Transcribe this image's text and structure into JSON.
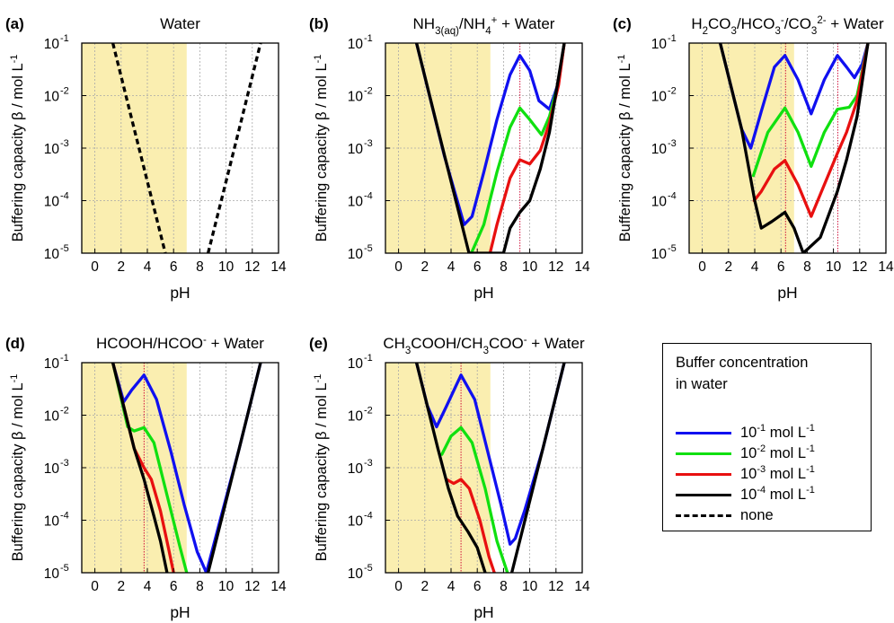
{
  "chart_data": [
    {
      "panel": "(a)",
      "title": "Water",
      "type": "line",
      "xlabel": "pH",
      "ylabel": "Buffering capacity β / mol L-1",
      "xlim": [
        0,
        14
      ],
      "ylim_log10": [
        -5,
        -1
      ],
      "yscale": "log",
      "grid": true,
      "shaded_region": [
        0,
        7
      ],
      "shade_color": "#faeeb0",
      "series": [
        {
          "name": "none",
          "style": "dashed",
          "color": "#000000",
          "points": [
            [
              1.37,
              0.1
            ],
            [
              3.0,
              0.0023
            ],
            [
              5.37,
              1e-05
            ]
          ]
        },
        {
          "name": "none",
          "style": "dashed",
          "color": "#000000",
          "points": [
            [
              8.63,
              1e-05
            ],
            [
              11.0,
              0.0023
            ],
            [
              12.63,
              0.1
            ]
          ]
        }
      ],
      "vlines": []
    },
    {
      "panel": "(b)",
      "title": "NH3(aq)/NH4+ + Water",
      "type": "line",
      "xlabel": "pH",
      "ylabel": "Buffering capacity β / mol L-1",
      "xlim": [
        0,
        14
      ],
      "ylim_log10": [
        -5,
        -1
      ],
      "yscale": "log",
      "grid": true,
      "shaded_region": [
        0,
        7
      ],
      "shade_color": "#faeeb0",
      "pKa": 9.25,
      "series": [
        {
          "name": "10-1 mol L-1",
          "color": "#1010f0",
          "points": [
            [
              1.37,
              0.1
            ],
            [
              3.5,
              0.0007
            ],
            [
              5.0,
              3.5e-05
            ],
            [
              5.6,
              5e-05
            ],
            [
              6.5,
              0.00035
            ],
            [
              7.5,
              0.0035
            ],
            [
              8.5,
              0.025
            ],
            [
              9.25,
              0.058
            ],
            [
              10.0,
              0.03
            ],
            [
              10.7,
              0.008
            ],
            [
              11.5,
              0.0055
            ],
            [
              12.2,
              0.018
            ],
            [
              12.63,
              0.1
            ]
          ]
        },
        {
          "name": "10-2 mol L-1",
          "color": "#10e010",
          "points": [
            [
              5.55,
              1e-05
            ],
            [
              6.5,
              3.5e-05
            ],
            [
              7.5,
              0.00035
            ],
            [
              8.5,
              0.0025
            ],
            [
              9.25,
              0.0058
            ],
            [
              10.0,
              0.0035
            ],
            [
              10.9,
              0.0018
            ],
            [
              11.5,
              0.004
            ],
            [
              12.2,
              0.018
            ],
            [
              12.63,
              0.1
            ]
          ]
        },
        {
          "name": "10-3 mol L-1",
          "color": "#e81010",
          "points": [
            [
              6.97,
              1e-05
            ],
            [
              7.5,
              3.5e-05
            ],
            [
              8.5,
              0.00027
            ],
            [
              9.25,
              0.0006
            ],
            [
              10.0,
              0.0005
            ],
            [
              10.8,
              0.0009
            ],
            [
              11.5,
              0.003
            ],
            [
              12.2,
              0.016
            ],
            [
              12.63,
              0.1
            ]
          ]
        },
        {
          "name": "10-4 mol L-1",
          "color": "#000000",
          "points": [
            [
              1.37,
              0.1
            ],
            [
              3.0,
              0.0023
            ],
            [
              5.37,
              1e-05
            ],
            [
              5.6,
              1e-05
            ],
            [
              8.0,
              1e-05
            ],
            [
              8.5,
              3e-05
            ],
            [
              9.25,
              6e-05
            ],
            [
              10.0,
              0.0001
            ],
            [
              10.8,
              0.0004
            ],
            [
              11.5,
              0.002
            ],
            [
              12.63,
              0.1
            ]
          ]
        }
      ],
      "vlines": [
        9.25
      ]
    },
    {
      "panel": "(c)",
      "title": "H2CO3/HCO3-/CO32- + Water",
      "type": "line",
      "xlabel": "pH",
      "ylabel": "Buffering capacity β / mol L-1",
      "xlim": [
        0,
        14
      ],
      "ylim_log10": [
        -5,
        -1
      ],
      "yscale": "log",
      "grid": true,
      "shaded_region": [
        0,
        7
      ],
      "shade_color": "#faeeb0",
      "pKa": [
        6.35,
        10.33
      ],
      "series": [
        {
          "name": "10-1 mol L-1",
          "color": "#1010f0",
          "points": [
            [
              1.37,
              0.1
            ],
            [
              3.0,
              0.0023
            ],
            [
              3.7,
              0.001
            ],
            [
              4.5,
              0.005
            ],
            [
              5.5,
              0.035
            ],
            [
              6.3,
              0.058
            ],
            [
              7.3,
              0.02
            ],
            [
              8.3,
              0.0045
            ],
            [
              9.3,
              0.02
            ],
            [
              10.3,
              0.058
            ],
            [
              11.0,
              0.035
            ],
            [
              11.6,
              0.022
            ],
            [
              12.2,
              0.04
            ],
            [
              12.63,
              0.1
            ]
          ]
        },
        {
          "name": "10-2 mol L-1",
          "color": "#10e010",
          "points": [
            [
              3.9,
              0.0003
            ],
            [
              5.0,
              0.002
            ],
            [
              6.3,
              0.0058
            ],
            [
              7.3,
              0.002
            ],
            [
              8.3,
              0.00045
            ],
            [
              9.3,
              0.002
            ],
            [
              10.3,
              0.0055
            ],
            [
              11.2,
              0.006
            ],
            [
              11.8,
              0.01
            ],
            [
              12.63,
              0.1
            ]
          ]
        },
        {
          "name": "10-3 mol L-1",
          "color": "#e81010",
          "points": [
            [
              3.95,
              0.0001
            ],
            [
              4.5,
              0.00015
            ],
            [
              5.5,
              0.0004
            ],
            [
              6.3,
              0.00058
            ],
            [
              7.3,
              0.0002
            ],
            [
              8.3,
              5e-05
            ],
            [
              9.3,
              0.0002
            ],
            [
              10.3,
              0.0008
            ],
            [
              11.0,
              0.002
            ],
            [
              11.8,
              0.008
            ],
            [
              12.63,
              0.1
            ]
          ]
        },
        {
          "name": "10-4 mol L-1",
          "color": "#000000",
          "points": [
            [
              1.37,
              0.1
            ],
            [
              3.0,
              0.0023
            ],
            [
              4.0,
              0.0001
            ],
            [
              4.5,
              3e-05
            ],
            [
              5.3,
              4e-05
            ],
            [
              6.3,
              6e-05
            ],
            [
              7.0,
              3e-05
            ],
            [
              7.7,
              1e-05
            ],
            [
              9.0,
              2e-05
            ],
            [
              10.3,
              0.00015
            ],
            [
              11.0,
              0.0006
            ],
            [
              11.8,
              0.004
            ],
            [
              12.63,
              0.1
            ]
          ]
        }
      ],
      "vlines": [
        6.35,
        10.33
      ]
    },
    {
      "panel": "(d)",
      "title": "HCOOH/HCOO- + Water",
      "type": "line",
      "xlabel": "pH",
      "ylabel": "Buffering capacity β / mol L-1",
      "xlim": [
        0,
        14
      ],
      "ylim_log10": [
        -5,
        -1
      ],
      "yscale": "log",
      "grid": true,
      "shaded_region": [
        0,
        7
      ],
      "shade_color": "#faeeb0",
      "pKa": 3.75,
      "series": [
        {
          "name": "10-1 mol L-1",
          "color": "#1010f0",
          "points": [
            [
              1.37,
              0.1
            ],
            [
              2.2,
              0.018
            ],
            [
              2.8,
              0.03
            ],
            [
              3.75,
              0.058
            ],
            [
              4.7,
              0.02
            ],
            [
              5.8,
              0.002
            ],
            [
              6.8,
              0.0002
            ],
            [
              7.8,
              2.5e-05
            ],
            [
              8.5,
              1e-05
            ],
            [
              9.5,
              9e-05
            ],
            [
              11.0,
              0.0023
            ],
            [
              12.63,
              0.1
            ]
          ]
        },
        {
          "name": "10-2 mol L-1",
          "color": "#10e010",
          "points": [
            [
              1.37,
              0.1
            ],
            [
              2.5,
              0.006
            ],
            [
              3.0,
              0.005
            ],
            [
              3.75,
              0.0058
            ],
            [
              4.5,
              0.003
            ],
            [
              5.5,
              0.0003
            ],
            [
              6.5,
              3e-05
            ],
            [
              7.0,
              1e-05
            ]
          ]
        },
        {
          "name": "10-3 mol L-1",
          "color": "#e81010",
          "points": [
            [
              1.37,
              0.1
            ],
            [
              3.0,
              0.0023
            ],
            [
              3.75,
              0.001
            ],
            [
              4.3,
              0.0006
            ],
            [
              5.0,
              0.00015
            ],
            [
              5.6,
              3e-05
            ],
            [
              6.0,
              1e-05
            ]
          ]
        },
        {
          "name": "10-4 mol L-1",
          "color": "#000000",
          "points": [
            [
              1.37,
              0.1
            ],
            [
              3.0,
              0.0023
            ],
            [
              3.75,
              0.0006
            ],
            [
              4.5,
              0.00012
            ],
            [
              5.0,
              4e-05
            ],
            [
              5.5,
              1e-05
            ]
          ]
        },
        {
          "name": "10-4 mol L-1 (basic branch)",
          "color": "#000000",
          "points": [
            [
              8.63,
              1e-05
            ],
            [
              11.0,
              0.0023
            ],
            [
              12.63,
              0.1
            ]
          ]
        }
      ],
      "vlines": [
        3.75
      ]
    },
    {
      "panel": "(e)",
      "title": "CH3COOH/CH3COO- + Water",
      "type": "line",
      "xlabel": "pH",
      "ylabel": "Buffering capacity β / mol L-1",
      "xlim": [
        0,
        14
      ],
      "ylim_log10": [
        -5,
        -1
      ],
      "yscale": "log",
      "grid": true,
      "shaded_region": [
        0,
        7
      ],
      "shade_color": "#faeeb0",
      "pKa": 4.76,
      "series": [
        {
          "name": "10-1 mol L-1",
          "color": "#1010f0",
          "points": [
            [
              1.37,
              0.1
            ],
            [
              2.2,
              0.015
            ],
            [
              2.9,
              0.006
            ],
            [
              3.6,
              0.014
            ],
            [
              4.76,
              0.058
            ],
            [
              5.8,
              0.02
            ],
            [
              6.8,
              0.002
            ],
            [
              7.8,
              0.0002
            ],
            [
              8.5,
              3.5e-05
            ],
            [
              8.9,
              4.5e-05
            ],
            [
              9.6,
              0.00015
            ],
            [
              11.0,
              0.0023
            ],
            [
              12.63,
              0.1
            ]
          ]
        },
        {
          "name": "10-2 mol L-1",
          "color": "#10e010",
          "points": [
            [
              3.3,
              0.0018
            ],
            [
              4.0,
              0.004
            ],
            [
              4.76,
              0.0058
            ],
            [
              5.6,
              0.003
            ],
            [
              6.6,
              0.0004
            ],
            [
              7.5,
              4e-05
            ],
            [
              8.3,
              1e-05
            ]
          ]
        },
        {
          "name": "10-3 mol L-1",
          "color": "#e81010",
          "points": [
            [
              3.65,
              0.0006
            ],
            [
              4.2,
              0.0005
            ],
            [
              4.76,
              0.0006
            ],
            [
              5.4,
              0.0004
            ],
            [
              6.2,
              0.0001
            ],
            [
              6.9,
              2e-05
            ],
            [
              7.3,
              1e-05
            ]
          ]
        },
        {
          "name": "10-4 mol L-1",
          "color": "#000000",
          "points": [
            [
              1.37,
              0.1
            ],
            [
              3.0,
              0.0023
            ],
            [
              3.8,
              0.0004
            ],
            [
              4.5,
              0.00012
            ],
            [
              5.3,
              6e-05
            ],
            [
              6.0,
              3e-05
            ],
            [
              6.6,
              1e-05
            ]
          ]
        },
        {
          "name": "10-4 mol L-1 (basic branch)",
          "color": "#000000",
          "points": [
            [
              8.63,
              1e-05
            ],
            [
              11.0,
              0.0023
            ],
            [
              12.63,
              0.1
            ]
          ]
        }
      ],
      "vlines": [
        4.76
      ]
    }
  ],
  "panels": [
    {
      "tag": "(a)",
      "title": [
        "Water"
      ]
    },
    {
      "tag": "(b)",
      "title": [
        "NH",
        {
          "sub": "3(aq)"
        },
        "/NH",
        {
          "sub": "4"
        },
        {
          "sup": "+"
        },
        " + Water"
      ]
    },
    {
      "tag": "(c)",
      "title": [
        "H",
        {
          "sub": "2"
        },
        "CO",
        {
          "sub": "3"
        },
        "/HCO",
        {
          "sub": "3"
        },
        {
          "sup": "-"
        },
        "/CO",
        {
          "sub": "3"
        },
        {
          "sup": "2-"
        },
        " + Water"
      ]
    },
    {
      "tag": "(d)",
      "title": [
        "HCOOH/HCOO",
        {
          "sup": "-"
        },
        " + Water"
      ]
    },
    {
      "tag": "(e)",
      "title": [
        "CH",
        {
          "sub": "3"
        },
        "COOH/CH",
        {
          "sub": "3"
        },
        "COO",
        {
          "sup": "-"
        },
        " + Water"
      ]
    }
  ],
  "axes": {
    "xlabel": "pH",
    "ylabel_main": "Buffering capacity β / mol L",
    "ylabel_sup": "-1",
    "xticks": [
      "0",
      "2",
      "4",
      "6",
      "8",
      "10",
      "12",
      "14"
    ],
    "ytick_base": "10",
    "ytick_exps": [
      "-5",
      "-4",
      "-3",
      "-2",
      "-1"
    ]
  },
  "legend": {
    "title_line1": "Buffer concentration",
    "title_line2": "in water",
    "items": [
      {
        "mantissa": "10",
        "exp": "-1",
        "unit": " mol L",
        "unit_exp": "-1",
        "color": "#1010f0",
        "style": "solid"
      },
      {
        "mantissa": "10",
        "exp": "-2",
        "unit": " mol L",
        "unit_exp": "-1",
        "color": "#10e010",
        "style": "solid"
      },
      {
        "mantissa": "10",
        "exp": "-3",
        "unit": " mol L",
        "unit_exp": "-1",
        "color": "#e81010",
        "style": "solid"
      },
      {
        "mantissa": "10",
        "exp": "-4",
        "unit": " mol L",
        "unit_exp": "-1",
        "color": "#000000",
        "style": "solid"
      },
      {
        "mantissa": "",
        "exp": "",
        "unit": "none",
        "unit_exp": "",
        "color": "#000000",
        "style": "dashed"
      }
    ]
  }
}
